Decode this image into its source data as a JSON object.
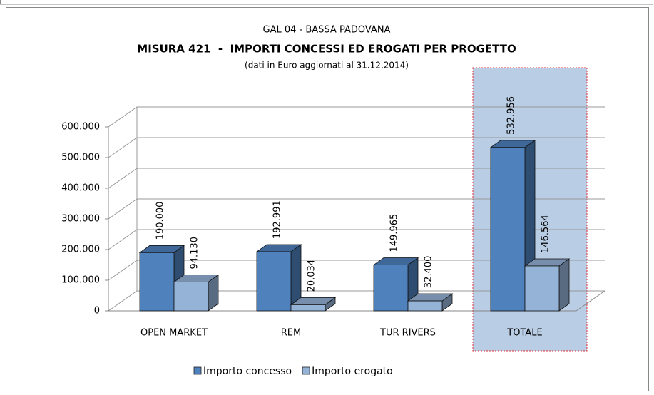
{
  "chart_data": {
    "type": "bar3d",
    "title": "GAL 04 - BASSA PADOVANA",
    "subtitle": "MISURA 421  -  IMPORTI CONCESSI ED EROGATI PER PROGETTO",
    "note": "(dati in Euro aggiornati al 31.12.2014)",
    "categories": [
      "OPEN MARKET",
      "REM",
      "TUR RIVERS",
      "TOTALE"
    ],
    "highlight": "TOTALE",
    "series": [
      {
        "name": "Importo concesso",
        "color": "#4f81bd",
        "values": [
          190000,
          192991,
          149965,
          532956
        ],
        "value_labels": [
          "190.000",
          "192.991",
          "149.965",
          "532.956"
        ]
      },
      {
        "name": "Importo erogato",
        "color": "#95b3d7",
        "values": [
          94130,
          20034,
          32400,
          146564
        ],
        "value_labels": [
          "94.130",
          "20.034",
          "32.400",
          "146.564"
        ]
      }
    ],
    "ylim": [
      0,
      600000
    ],
    "yticks": [
      0,
      {
        "value": 100000,
        "label": "100.000"
      },
      {
        "value": 200000,
        "label": "200.000"
      },
      {
        "value": 300000,
        "label": "300.000"
      },
      {
        "value": 400000,
        "label": "400.000"
      },
      {
        "value": 500000,
        "label": "500.000"
      },
      {
        "value": 600000,
        "label": "600.000"
      }
    ],
    "grid": true,
    "legend": "bottom"
  }
}
